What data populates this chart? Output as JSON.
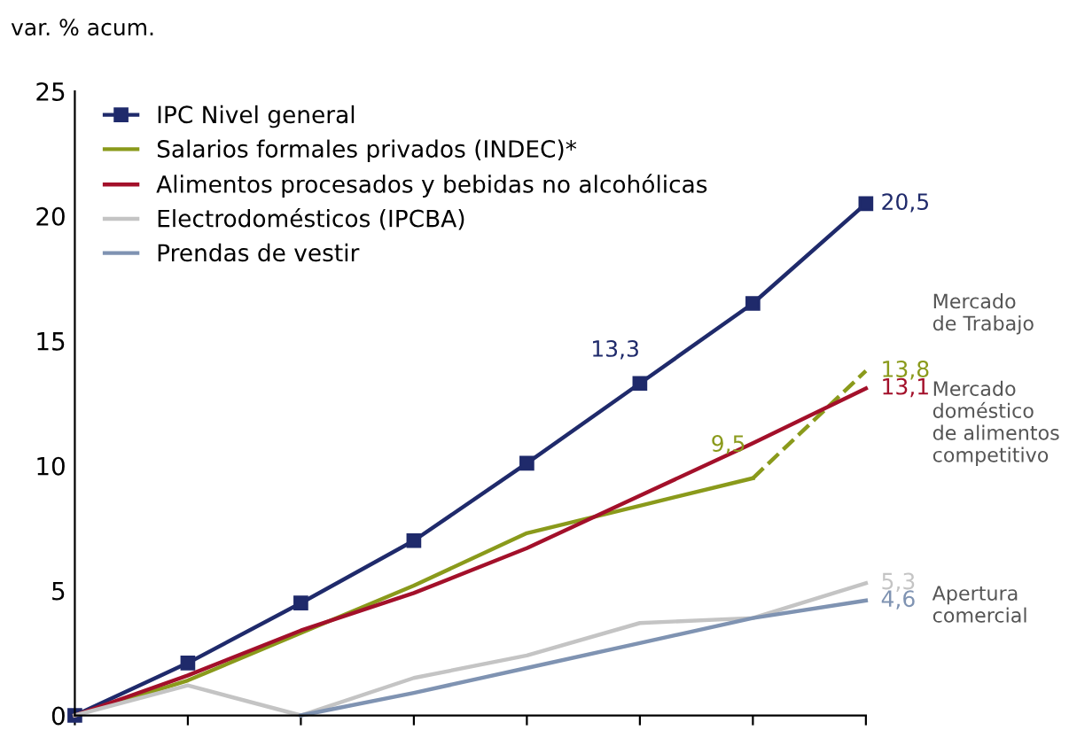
{
  "chart_data": {
    "type": "line",
    "ylabel": "var. % acum.",
    "categories": [
      null,
      null,
      null,
      null,
      null,
      null,
      null,
      null
    ],
    "ylim": [
      0,
      25
    ],
    "yticks": [
      0,
      5,
      10,
      15,
      20,
      25
    ],
    "grid": false,
    "legend": "top left",
    "series": [
      {
        "name": "IPC Nivel general",
        "color": "#1f2a6b",
        "marker": "square",
        "values": [
          0,
          2.1,
          4.5,
          7.0,
          10.1,
          13.3,
          16.5,
          20.5
        ],
        "value_labels": [
          null,
          null,
          null,
          null,
          null,
          "13,3",
          null,
          "20,5"
        ]
      },
      {
        "name": "Salarios formales privados (INDEC)*",
        "color": "#8a9a1b",
        "values": [
          0,
          1.4,
          3.3,
          5.2,
          7.3,
          8.4,
          9.5,
          null
        ],
        "value_labels": [
          null,
          null,
          null,
          null,
          null,
          null,
          "9,5",
          null
        ]
      },
      {
        "color": "#8a9a1b",
        "line_style": "dashed",
        "values": [
          null,
          null,
          null,
          null,
          null,
          null,
          9.5,
          13.8
        ],
        "value_labels": [
          null,
          null,
          null,
          null,
          null,
          null,
          null,
          "13,8"
        ]
      },
      {
        "name": "Alimentos procesados y bebidas no alcohólicas",
        "color": "#a3102a",
        "values": [
          0,
          1.6,
          3.4,
          4.9,
          6.7,
          8.8,
          10.9,
          13.1
        ],
        "value_labels": [
          null,
          null,
          null,
          null,
          null,
          null,
          null,
          "13,1"
        ]
      },
      {
        "name": "Electrodomésticos (IPCBA)",
        "color": "#c4c4c4",
        "values": [
          0,
          1.2,
          0,
          1.5,
          2.4,
          3.7,
          3.9,
          5.3
        ],
        "value_labels": [
          null,
          null,
          null,
          null,
          null,
          null,
          null,
          "5,3"
        ]
      },
      {
        "name": "Prendas de vestir",
        "color": "#7f93b2",
        "values": [
          null,
          null,
          0,
          0.9,
          1.9,
          2.9,
          3.9,
          4.6
        ],
        "value_labels": [
          null,
          null,
          null,
          null,
          null,
          null,
          null,
          "4,6"
        ]
      }
    ],
    "annotations": [
      "Mercado\nde Trabajo",
      "Mercado\ndoméstico\nde alimentos\ncompetitivo",
      "Apertura\ncomercial"
    ]
  }
}
